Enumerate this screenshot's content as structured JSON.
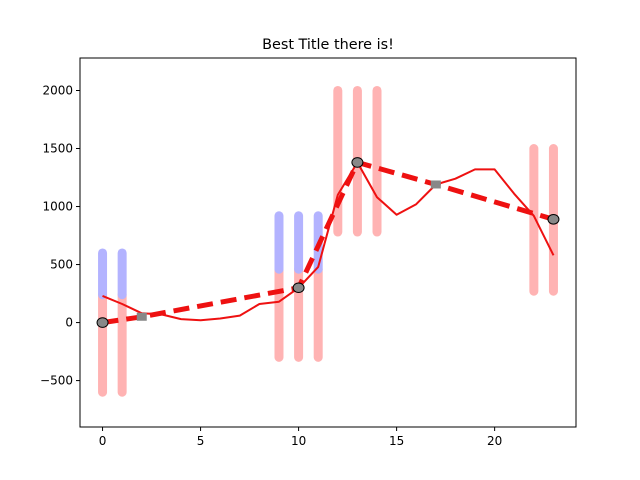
{
  "chart_data": {
    "type": "line",
    "title": "Best Title there is!",
    "xlabel": "",
    "ylabel": "",
    "xlim": [
      -1.15,
      24.15
    ],
    "ylim": [
      -900,
      2280
    ],
    "x_ticks": [
      0,
      5,
      10,
      15,
      20
    ],
    "x_tick_labels": [
      "0",
      "5",
      "10",
      "15",
      "20"
    ],
    "y_ticks": [
      -500,
      0,
      500,
      1000,
      1500,
      2000
    ],
    "y_tick_labels": [
      "−500",
      "0",
      "500",
      "1000",
      "1500",
      "2000"
    ],
    "grid": false,
    "legend": "none",
    "series": [
      {
        "style": "solid",
        "color": "#ee1111",
        "x": [
          0,
          1,
          2,
          3,
          4,
          5,
          6,
          7,
          8,
          9,
          10,
          11,
          12,
          13,
          14,
          15,
          16,
          17,
          18,
          19,
          20,
          21,
          22,
          23
        ],
        "y": [
          230,
          160,
          80,
          70,
          30,
          20,
          35,
          60,
          160,
          180,
          300,
          480,
          1100,
          1380,
          1080,
          930,
          1020,
          1190,
          1240,
          1320,
          1320,
          1110,
          920,
          580
        ]
      },
      {
        "style": "dashed",
        "color": "#ee1111",
        "x": [
          0,
          2,
          10,
          13,
          17,
          23
        ],
        "y": [
          0,
          50,
          300,
          1380,
          1190,
          890
        ],
        "circle_markers_at": [
          0,
          10,
          13,
          23
        ],
        "square_markers_at": [
          2,
          17
        ]
      }
    ],
    "error_bars": [
      {
        "x": 0,
        "red": [
          -600,
          240
        ],
        "blue": [
          240,
          600
        ]
      },
      {
        "x": 1,
        "red": [
          -600,
          240
        ],
        "blue": [
          240,
          600
        ]
      },
      {
        "x": 9,
        "red": [
          -300,
          460
        ],
        "blue": [
          460,
          920
        ]
      },
      {
        "x": 10,
        "red": [
          -300,
          460
        ],
        "blue": [
          460,
          920
        ]
      },
      {
        "x": 11,
        "red": [
          -300,
          460
        ],
        "blue": [
          460,
          920
        ]
      },
      {
        "x": 12,
        "red": [
          780,
          2000
        ]
      },
      {
        "x": 13,
        "red": [
          780,
          2000
        ]
      },
      {
        "x": 14,
        "red": [
          780,
          2000
        ]
      },
      {
        "x": 22,
        "red": [
          270,
          1500
        ]
      },
      {
        "x": 23,
        "red": [
          270,
          1500
        ]
      }
    ],
    "colors": {
      "line": "#ee1111",
      "errorbar_red": "#ffb3b3",
      "errorbar_blue": "#b3b3ff",
      "circle_face": "#888888",
      "square_face": "#888888"
    }
  }
}
